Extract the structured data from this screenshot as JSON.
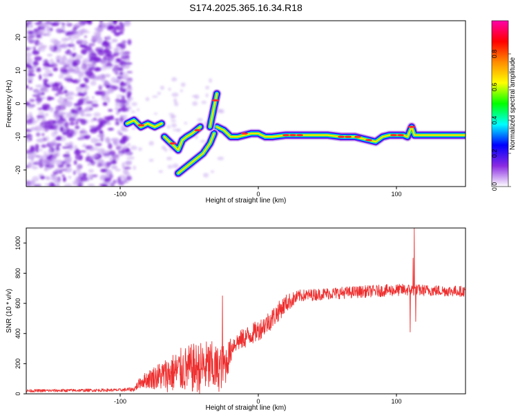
{
  "title": "S174.2025.365.16.34.R18",
  "colors": {
    "snr_line": "#ee2e2e",
    "frame": "#000000",
    "background": "#ffffff",
    "noise_purple": "#7a1fd6",
    "noise_light": "#c8a8f0"
  },
  "chart_data": [
    {
      "type": "heatmap",
      "name": "spectrogram",
      "xlabel": "Height of straight line (km)",
      "ylabel": "Frequency (Hz)",
      "xlim": [
        -168,
        150
      ],
      "ylim": [
        -25,
        25
      ],
      "x_ticks": [
        {
          "value": -100,
          "label": "-100"
        },
        {
          "value": 0,
          "label": "0"
        },
        {
          "value": 100,
          "label": "100"
        }
      ],
      "y_ticks": [
        {
          "value": 20,
          "label": "20"
        },
        {
          "value": 10,
          "label": "10"
        },
        {
          "value": 0,
          "label": "0"
        },
        {
          "value": -10,
          "label": "-10"
        },
        {
          "value": -20,
          "label": "-20"
        }
      ],
      "noise_region_x": [
        -168,
        -93
      ],
      "ridge": [
        [
          -30,
          -7
        ],
        [
          -25,
          -8
        ],
        [
          -20,
          -10
        ],
        [
          -15,
          -10
        ],
        [
          -10,
          -9.5
        ],
        [
          -5,
          -9
        ],
        [
          0,
          -9
        ],
        [
          5,
          -10
        ],
        [
          10,
          -10
        ],
        [
          20,
          -9.5
        ],
        [
          30,
          -9.5
        ],
        [
          40,
          -9.5
        ],
        [
          50,
          -9.5
        ],
        [
          60,
          -10
        ],
        [
          70,
          -10
        ],
        [
          80,
          -11
        ],
        [
          85,
          -11.5
        ],
        [
          90,
          -10
        ],
        [
          95,
          -9.5
        ],
        [
          100,
          -9.5
        ],
        [
          105,
          -9.5
        ],
        [
          108,
          -10
        ],
        [
          111,
          -7
        ],
        [
          113,
          -9.5
        ],
        [
          120,
          -9.5
        ],
        [
          130,
          -9.5
        ],
        [
          140,
          -9.5
        ],
        [
          150,
          -9.5
        ]
      ],
      "branches": [
        [
          [
            -95,
            -6
          ],
          [
            -90,
            -5
          ],
          [
            -85,
            -7
          ],
          [
            -80,
            -6
          ],
          [
            -75,
            -7
          ],
          [
            -70,
            -6
          ]
        ],
        [
          [
            -68,
            -10
          ],
          [
            -63,
            -12
          ],
          [
            -58,
            -14
          ],
          [
            -55,
            -11
          ],
          [
            -52,
            -10
          ],
          [
            -48,
            -9
          ],
          [
            -45,
            -8
          ],
          [
            -42,
            -7
          ]
        ],
        [
          [
            -58,
            -21
          ],
          [
            -52,
            -19
          ],
          [
            -46,
            -17
          ],
          [
            -40,
            -15
          ],
          [
            -35,
            -12
          ],
          [
            -32,
            -9
          ]
        ],
        [
          [
            -35,
            -7
          ],
          [
            -33,
            -3
          ],
          [
            -31,
            1
          ],
          [
            -30,
            3
          ]
        ]
      ],
      "colorbar": {
        "label": "Normalized spectral amplitude",
        "range": [
          0,
          1
        ],
        "ticks": [
          {
            "value": 0.0,
            "label": "0.0"
          },
          {
            "value": 0.2,
            "label": "0.2"
          },
          {
            "value": 0.4,
            "label": "0.4"
          },
          {
            "value": 0.6,
            "label": "0.6"
          },
          {
            "value": 0.8,
            "label": "0.8"
          }
        ],
        "stops": [
          "#ffffff",
          "#8a2be2",
          "#0000ff",
          "#00ffff",
          "#00ff00",
          "#ffff00",
          "#ff8c00",
          "#ff0000",
          "#ff00aa"
        ]
      }
    },
    {
      "type": "line",
      "name": "snr",
      "xlabel": "Height of straight line (km)",
      "ylabel": "SNR (10 * v/v)",
      "xlim": [
        -168,
        150
      ],
      "ylim": [
        0,
        1100
      ],
      "x_ticks": [
        {
          "value": -100,
          "label": "-100"
        },
        {
          "value": 0,
          "label": "0"
        },
        {
          "value": 100,
          "label": "100"
        }
      ],
      "y_ticks": [
        {
          "value": 0,
          "label": "0"
        },
        {
          "value": 200,
          "label": "200"
        },
        {
          "value": 400,
          "label": "400"
        },
        {
          "value": 600,
          "label": "600"
        },
        {
          "value": 800,
          "label": "800"
        },
        {
          "value": 1000,
          "label": "1000"
        }
      ],
      "series": [
        {
          "name": "SNR",
          "envelope": [
            {
              "x": -168,
              "y": 20,
              "amp": 10
            },
            {
              "x": -100,
              "y": 25,
              "amp": 10
            },
            {
              "x": -90,
              "y": 30,
              "amp": 15
            },
            {
              "x": -85,
              "y": 80,
              "amp": 40
            },
            {
              "x": -75,
              "y": 110,
              "amp": 80
            },
            {
              "x": -65,
              "y": 130,
              "amp": 120
            },
            {
              "x": -55,
              "y": 160,
              "amp": 150
            },
            {
              "x": -45,
              "y": 170,
              "amp": 170
            },
            {
              "x": -35,
              "y": 180,
              "amp": 180
            },
            {
              "x": -30,
              "y": 160,
              "amp": 160
            },
            {
              "x": -24,
              "y": 190,
              "amp": 140
            },
            {
              "x": -18,
              "y": 330,
              "amp": 60
            },
            {
              "x": -10,
              "y": 370,
              "amp": 70
            },
            {
              "x": 0,
              "y": 420,
              "amp": 70
            },
            {
              "x": 10,
              "y": 500,
              "amp": 70
            },
            {
              "x": 20,
              "y": 600,
              "amp": 60
            },
            {
              "x": 30,
              "y": 650,
              "amp": 40
            },
            {
              "x": 50,
              "y": 665,
              "amp": 40
            },
            {
              "x": 80,
              "y": 680,
              "amp": 40
            },
            {
              "x": 105,
              "y": 690,
              "amp": 40
            },
            {
              "x": 150,
              "y": 680,
              "amp": 35
            }
          ],
          "spikes": [
            {
              "x": -26,
              "y": 650
            },
            {
              "x": 110,
              "y": 410
            },
            {
              "x": 112,
              "y": 900
            },
            {
              "x": 113,
              "y": 1100
            },
            {
              "x": 114,
              "y": 480
            }
          ]
        }
      ]
    }
  ]
}
